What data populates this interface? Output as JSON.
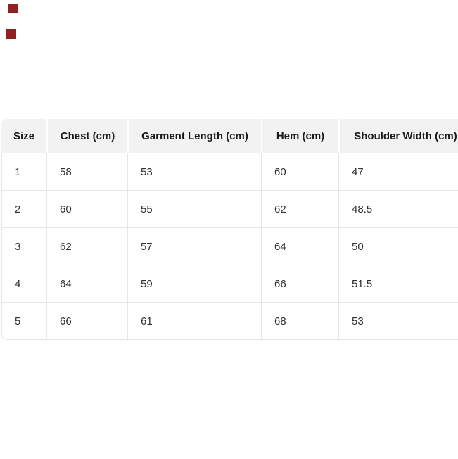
{
  "page": {
    "background_color": "#ffffff"
  },
  "broken_images": {
    "count": 2,
    "color": "#8e2222"
  },
  "chart_data": {
    "type": "table",
    "title": "",
    "columns": [
      "Size",
      "Chest (cm)",
      "Garment Length (cm)",
      "Hem (cm)",
      "Shoulder Width (cm)"
    ],
    "rows": [
      [
        1,
        58,
        53,
        60,
        47
      ],
      [
        2,
        60,
        55,
        62,
        48.5
      ],
      [
        3,
        62,
        57,
        64,
        50
      ],
      [
        4,
        64,
        59,
        66,
        51.5
      ],
      [
        5,
        66,
        61,
        68,
        53
      ]
    ],
    "units": "cm",
    "layout": {
      "header_background": "#f2f2f2",
      "border_color": "#e7e7e7",
      "header_text_color": "#1a1a1a",
      "body_text_color": "#303030",
      "right_edge_clipped": true,
      "header_align": "center",
      "body_align": "left"
    }
  }
}
